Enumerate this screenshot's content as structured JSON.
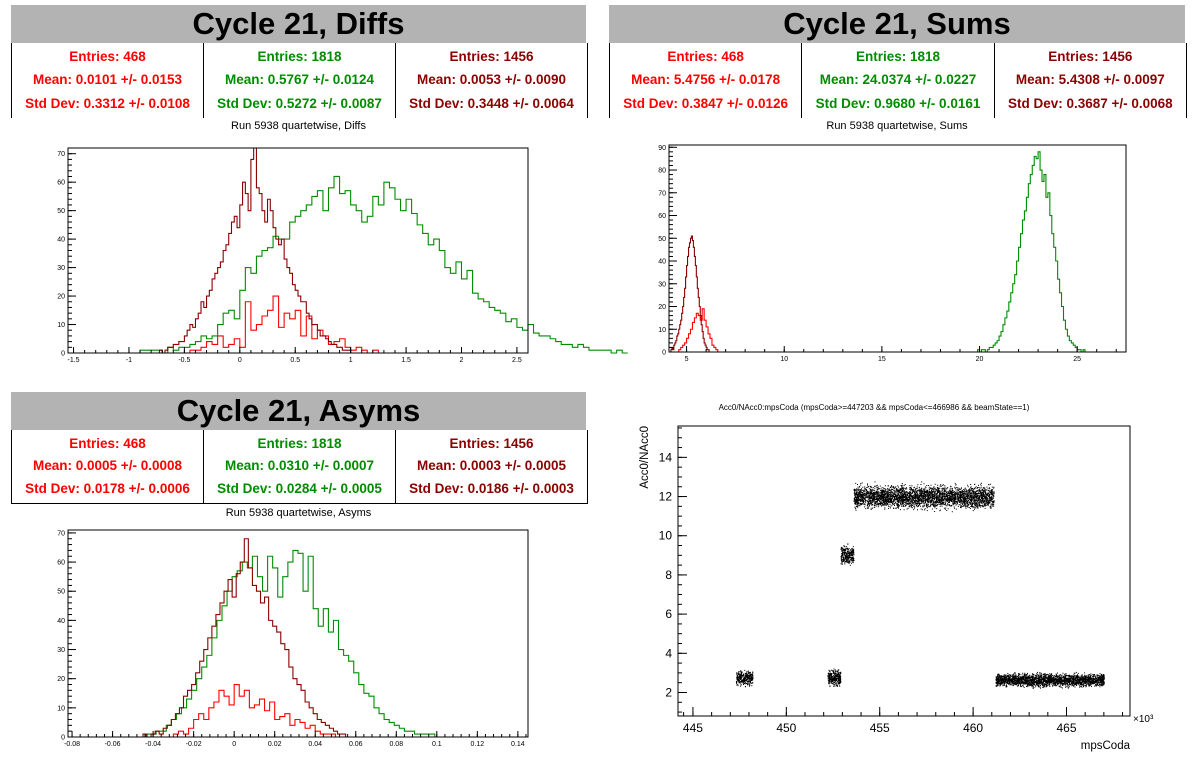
{
  "colors": {
    "red": "#ff0000",
    "green": "#008c00",
    "darkred": "#8b0000"
  },
  "panels": {
    "diffs": {
      "title": "Cycle 21, Diffs",
      "subtitle": "Run 5938 quartetwise, Diffs",
      "stats": [
        {
          "entries": "Entries: 468",
          "mean": "Mean: 0.0101 +/- 0.0153",
          "std": "Std Dev: 0.3312 +/- 0.0108",
          "color": "#ff0000"
        },
        {
          "entries": "Entries: 1818",
          "mean": "Mean: 0.5767 +/- 0.0124",
          "std": "Std Dev: 0.5272 +/- 0.0087",
          "color": "#008c00"
        },
        {
          "entries": "Entries: 1456",
          "mean": "Mean: 0.0053 +/- 0.0090",
          "std": "Std Dev: 0.3448 +/- 0.0064",
          "color": "#8b0000"
        }
      ]
    },
    "sums": {
      "title": "Cycle 21, Sums",
      "subtitle": "Run 5938 quartetwise, Sums",
      "stats": [
        {
          "entries": "Entries: 468",
          "mean": "Mean: 5.4756 +/- 0.0178",
          "std": "Std Dev: 0.3847 +/- 0.0126",
          "color": "#ff0000"
        },
        {
          "entries": "Entries: 1818",
          "mean": "Mean: 24.0374 +/- 0.0227",
          "std": "Std Dev: 0.9680 +/- 0.0161",
          "color": "#008c00"
        },
        {
          "entries": "Entries: 1456",
          "mean": "Mean: 5.4308 +/- 0.0097",
          "std": "Std Dev: 0.3687 +/- 0.0068",
          "color": "#8b0000"
        }
      ]
    },
    "asyms": {
      "title": "Cycle 21, Asyms",
      "subtitle": "Run 5938 quartetwise, Asyms",
      "stats": [
        {
          "entries": "Entries: 468",
          "mean": "Mean: 0.0005 +/- 0.0008",
          "std": "Std Dev: 0.0178 +/- 0.0006",
          "color": "#ff0000"
        },
        {
          "entries": "Entries: 1818",
          "mean": "Mean: 0.0310 +/- 0.0007",
          "std": "Std Dev: 0.0284 +/- 0.0005",
          "color": "#008c00"
        },
        {
          "entries": "Entries: 1456",
          "mean": "Mean: 0.0003 +/- 0.0005",
          "std": "Std Dev: 0.0186 +/- 0.0003",
          "color": "#8b0000"
        }
      ]
    }
  },
  "chart_data": [
    {
      "id": "diffs",
      "type": "histogram",
      "xlim": [
        -1.55,
        2.6
      ],
      "ylim": [
        0,
        72
      ],
      "xticks": [
        -1.5,
        -1,
        -0.5,
        0,
        0.5,
        1,
        1.5,
        2,
        2.5
      ],
      "xtick_labels": [
        "-1.5",
        "-1",
        "-0.5",
        "0",
        "0.5",
        "1",
        "1.5",
        "2",
        "2.5"
      ],
      "yticks": [
        0,
        10,
        20,
        30,
        40,
        50,
        60,
        70
      ],
      "series": [
        {
          "color": "#ff0000",
          "bin_start": -0.5,
          "bin_width": 0.05,
          "values": [
            0,
            1,
            1,
            2,
            4,
            3,
            6,
            2,
            3,
            5,
            2,
            18,
            8,
            10,
            13,
            15,
            20,
            9,
            14,
            12,
            15,
            6,
            13,
            5,
            8,
            6,
            3,
            4,
            5,
            2,
            1,
            2,
            1,
            0,
            1,
            0
          ]
        },
        {
          "color": "#008c00",
          "bin_start": -1.0,
          "bin_width": 0.05,
          "values": [
            0,
            0,
            1,
            1,
            1,
            1,
            0,
            2,
            1,
            2,
            2,
            3,
            4,
            6,
            5,
            6,
            10,
            14,
            15,
            12,
            22,
            30,
            28,
            34,
            36,
            37,
            41,
            40,
            40,
            46,
            48,
            50,
            52,
            55,
            57,
            50,
            58,
            62,
            56,
            57,
            52,
            50,
            46,
            48,
            55,
            52,
            60,
            58,
            54,
            50,
            54,
            49,
            45,
            42,
            38,
            40,
            36,
            30,
            28,
            32,
            26,
            29,
            21,
            19,
            18,
            16,
            15,
            14,
            11,
            12,
            9,
            8,
            10,
            7,
            6,
            6,
            5,
            4,
            3,
            3,
            2,
            3,
            2,
            1,
            1,
            1,
            1,
            0,
            1,
            0
          ]
        },
        {
          "color": "#8b0000",
          "bin_start": -0.75,
          "bin_width": 0.025,
          "values": [
            0,
            1,
            0,
            1,
            2,
            2,
            3,
            3,
            4,
            4,
            6,
            8,
            10,
            9,
            12,
            14,
            18,
            16,
            20,
            22,
            26,
            28,
            30,
            32,
            36,
            38,
            42,
            46,
            48,
            44,
            52,
            60,
            56,
            50,
            68,
            72,
            58,
            56,
            50,
            46,
            54,
            50,
            44,
            40,
            38,
            40,
            33,
            30,
            28,
            24,
            22,
            20,
            18,
            18,
            14,
            12,
            10,
            10,
            8,
            6,
            6,
            5,
            4,
            3,
            3,
            2,
            2,
            1,
            1,
            1,
            0
          ]
        }
      ]
    },
    {
      "id": "sums",
      "type": "histogram",
      "xlim": [
        4.1,
        27.5
      ],
      "ylim": [
        0,
        91
      ],
      "xticks": [
        5,
        10,
        15,
        20,
        25
      ],
      "xtick_labels": [
        "5",
        "10",
        "15",
        "20",
        "25"
      ],
      "yticks": [
        0,
        10,
        20,
        30,
        40,
        50,
        60,
        70,
        80,
        90
      ],
      "series": [
        {
          "color": "#ff0000",
          "bin_start": 4.6,
          "bin_width": 0.1,
          "values": [
            1,
            2,
            3,
            4,
            6,
            8,
            10,
            13,
            15,
            17,
            16,
            14,
            19,
            14,
            11,
            8,
            6,
            3,
            2,
            1
          ]
        },
        {
          "color": "#008c00",
          "bin_start": 19.9,
          "bin_width": 0.1,
          "values": [
            1,
            0,
            1,
            1,
            0,
            1,
            2,
            2,
            3,
            4,
            5,
            7,
            9,
            12,
            15,
            18,
            22,
            26,
            30,
            34,
            40,
            46,
            52,
            58,
            62,
            68,
            74,
            78,
            82,
            86,
            85,
            88,
            80,
            75,
            78,
            68,
            70,
            60,
            52,
            46,
            40,
            32,
            26,
            20,
            14,
            10,
            7,
            5,
            4,
            3,
            2,
            1,
            1,
            0,
            1,
            0,
            0,
            0
          ]
        },
        {
          "color": "#8b0000",
          "bin_start": 4.2,
          "bin_width": 0.05,
          "values": [
            1,
            2,
            1,
            3,
            4,
            5,
            7,
            8,
            10,
            12,
            14,
            17,
            20,
            24,
            28,
            33,
            38,
            42,
            46,
            48,
            50,
            51,
            49,
            46,
            42,
            38,
            33,
            28,
            24,
            20,
            16,
            12,
            9,
            6,
            4,
            3,
            2,
            1,
            1,
            0
          ]
        }
      ]
    },
    {
      "id": "asyms",
      "type": "histogram",
      "xlim": [
        -0.082,
        0.145
      ],
      "ylim": [
        0,
        71
      ],
      "xticks": [
        -0.08,
        -0.06,
        -0.04,
        -0.02,
        0,
        0.02,
        0.04,
        0.06,
        0.08,
        0.1,
        0.12,
        0.14
      ],
      "xtick_labels": [
        "-0.08",
        "-0.06",
        "-0.04",
        "-0.02",
        "0",
        "0.02",
        "0.04",
        "0.06",
        "0.08",
        "0.1",
        "0.12",
        "0.14"
      ],
      "yticks": [
        0,
        10,
        20,
        30,
        40,
        50,
        60,
        70
      ],
      "series": [
        {
          "color": "#ff0000",
          "bin_start": -0.03,
          "bin_width": 0.0025,
          "values": [
            1,
            2,
            1,
            3,
            6,
            8,
            6,
            10,
            12,
            16,
            14,
            11,
            18,
            14,
            16,
            10,
            11,
            13,
            9,
            12,
            6,
            7,
            8,
            4,
            6,
            5,
            3,
            4,
            2,
            1,
            1,
            1,
            0
          ]
        },
        {
          "color": "#008c00",
          "bin_start": -0.046,
          "bin_width": 0.0025,
          "values": [
            0,
            1,
            1,
            2,
            2,
            4,
            6,
            8,
            10,
            13,
            16,
            20,
            24,
            28,
            34,
            40,
            45,
            50,
            55,
            57,
            60,
            58,
            62,
            55,
            50,
            62,
            58,
            48,
            55,
            60,
            64,
            63,
            50,
            62,
            44,
            38,
            44,
            36,
            40,
            30,
            28,
            26,
            22,
            18,
            15,
            14,
            10,
            8,
            6,
            5,
            4,
            3,
            2,
            2,
            1,
            1,
            1,
            1,
            0
          ]
        },
        {
          "color": "#8b0000",
          "bin_start": -0.045,
          "bin_width": 0.002,
          "values": [
            1,
            0,
            1,
            2,
            1,
            3,
            4,
            6,
            8,
            10,
            14,
            16,
            18,
            22,
            26,
            30,
            34,
            38,
            42,
            46,
            50,
            54,
            48,
            56,
            60,
            68,
            58,
            52,
            50,
            46,
            48,
            40,
            38,
            36,
            32,
            30,
            24,
            20,
            18,
            16,
            12,
            10,
            8,
            6,
            5,
            4,
            3,
            2,
            1,
            1,
            0
          ]
        }
      ]
    },
    {
      "id": "scatter",
      "type": "scatter",
      "title": "Acc0/NAcc0:mpsCoda (mpsCoda>=447203 && mpsCoda<=466986 && beamState==1)",
      "xlabel": "mpsCoda",
      "ylabel": "Acc0/NAcc0",
      "x_multiplier": "×10³",
      "xlim": [
        444.2,
        468.4
      ],
      "ylim": [
        0.8,
        15.6
      ],
      "xticks": [
        445,
        450,
        455,
        460,
        465
      ],
      "xtick_labels": [
        "445",
        "450",
        "455",
        "460",
        "465"
      ],
      "yticks": [
        2,
        4,
        6,
        8,
        10,
        12,
        14
      ],
      "ytick_labels": [
        "2",
        "4",
        "6",
        "8",
        "10",
        "12",
        "14"
      ],
      "point_color": "#000000",
      "clusters": [
        {
          "x_range": [
            447.3,
            448.2
          ],
          "y_center": 2.75,
          "y_spread": 0.5,
          "count": 350
        },
        {
          "x_range": [
            452.2,
            452.9
          ],
          "y_center": 2.75,
          "y_spread": 0.55,
          "count": 300
        },
        {
          "x_range": [
            452.9,
            453.6
          ],
          "y_center": 9.0,
          "y_spread": 0.7,
          "count": 300
        },
        {
          "x_range": [
            453.6,
            461.1
          ],
          "y_center": 12.0,
          "y_spread": 0.8,
          "count": 3500
        },
        {
          "x_range": [
            461.2,
            467.0
          ],
          "y_center": 2.65,
          "y_spread": 0.45,
          "count": 2500
        }
      ]
    }
  ]
}
